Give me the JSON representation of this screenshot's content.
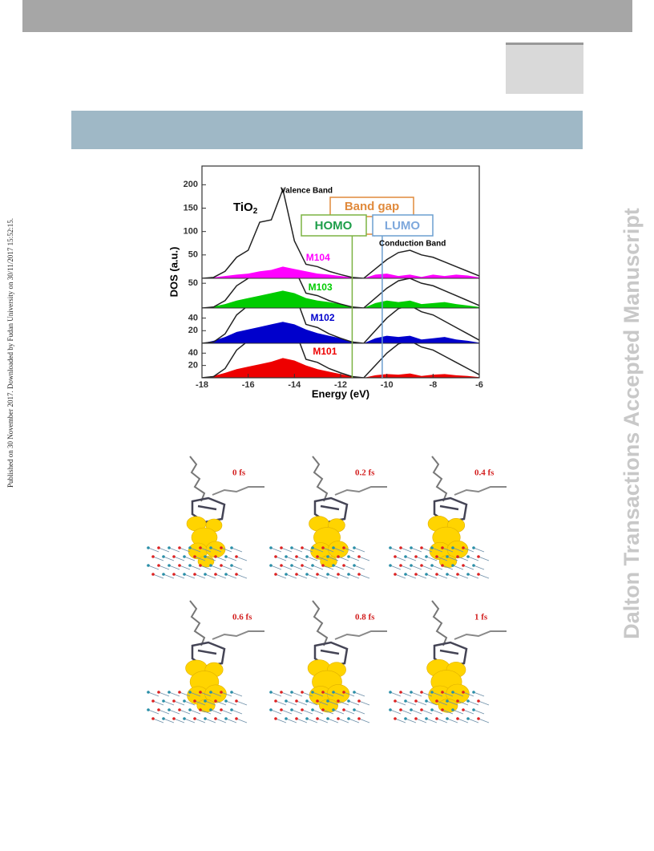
{
  "header": {
    "side_note": "Published on 30 November 2017. Downloaded by Fudan University on 30/11/2017 15:52:15.",
    "watermark": "Dalton Transactions Accepted Manuscript"
  },
  "chart_data": {
    "type": "area",
    "x": [
      -18,
      -17.5,
      -17,
      -16.5,
      -16,
      -15.5,
      -15,
      -14.5,
      -14,
      -13.5,
      -13,
      -12.5,
      -12,
      -11.5,
      -11,
      -10.5,
      -10,
      -9.5,
      -9,
      -8.5,
      -8,
      -7.5,
      -7,
      -6.5,
      -6
    ],
    "xlim": [
      -18,
      -6
    ],
    "xticks": [
      -18,
      -16,
      -14,
      -12,
      -10,
      -8,
      -6
    ],
    "xlabel": "Energy  (eV)",
    "ylabel": "DOS (a.u.)",
    "total": {
      "color": "#222222",
      "values": [
        0,
        2,
        15,
        45,
        60,
        120,
        125,
        190,
        80,
        30,
        25,
        15,
        8,
        2,
        0,
        20,
        40,
        55,
        60,
        50,
        45,
        35,
        25,
        15,
        5
      ]
    },
    "panels": [
      {
        "name": "M104",
        "color": "#ff00ff",
        "ylim": [
          0,
          240
        ],
        "yticks": [
          50,
          100,
          150,
          200
        ],
        "values": [
          0,
          2,
          5,
          8,
          10,
          15,
          18,
          25,
          20,
          15,
          10,
          8,
          5,
          2,
          0,
          8,
          10,
          5,
          8,
          3,
          8,
          5,
          8,
          6,
          2
        ]
      },
      {
        "name": "M103",
        "color": "#00cc00",
        "ylim": [
          0,
          60
        ],
        "yticks": [
          50
        ],
        "values": [
          0,
          3,
          8,
          15,
          20,
          25,
          30,
          35,
          30,
          20,
          15,
          12,
          8,
          3,
          0,
          10,
          15,
          12,
          15,
          8,
          10,
          12,
          8,
          5,
          2
        ]
      },
      {
        "name": "M102",
        "color": "#0000cc",
        "ylim": [
          0,
          56
        ],
        "yticks": [
          20,
          40
        ],
        "values": [
          0,
          4,
          10,
          18,
          22,
          26,
          30,
          34,
          30,
          22,
          16,
          12,
          8,
          3,
          0,
          8,
          12,
          10,
          12,
          6,
          8,
          10,
          6,
          4,
          1
        ]
      },
      {
        "name": "M101",
        "color": "#ee0000",
        "ylim": [
          0,
          56
        ],
        "yticks": [
          20,
          40
        ],
        "values": [
          0,
          3,
          8,
          14,
          18,
          22,
          26,
          32,
          28,
          20,
          14,
          10,
          6,
          2,
          0,
          4,
          6,
          5,
          7,
          3,
          5,
          6,
          4,
          3,
          1
        ]
      }
    ],
    "annotations": {
      "material": "TiO",
      "material_subscript": "2",
      "valence": "Valence Band",
      "conduction": "Conduction Band",
      "band_gap": "Band gap",
      "homo": "HOMO",
      "lumo": "LUMO"
    },
    "homo_energy": -11.5,
    "lumo_energy": -10.2
  },
  "frames": [
    {
      "label": "0 fs"
    },
    {
      "label": "0.2 fs"
    },
    {
      "label": "0.4 fs"
    },
    {
      "label": "0.6 fs"
    },
    {
      "label": "0.8 fs"
    },
    {
      "label": "1 fs"
    }
  ]
}
